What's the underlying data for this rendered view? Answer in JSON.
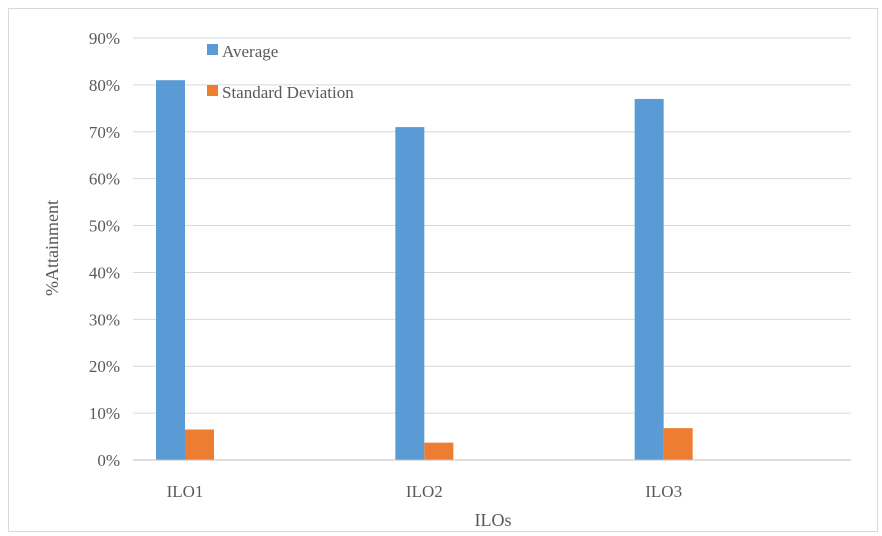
{
  "chart_data": {
    "type": "bar",
    "categories": [
      "ILO1",
      "ILO2",
      "ILO3"
    ],
    "series": [
      {
        "name": "Average",
        "values": [
          0.81,
          0.71,
          0.77
        ],
        "color": "#5b9bd5"
      },
      {
        "name": "Standard Deviation",
        "values": [
          0.065,
          0.037,
          0.068
        ],
        "color": "#ed7d31"
      }
    ],
    "ylim": [
      0,
      0.9
    ],
    "yticks": [
      "0%",
      "10%",
      "20%",
      "30%",
      "40%",
      "50%",
      "60%",
      "70%",
      "80%",
      "90%"
    ],
    "xlabel": "ILOs",
    "ylabel": "%Attainment",
    "grid": true,
    "legend_position": "top-left"
  }
}
